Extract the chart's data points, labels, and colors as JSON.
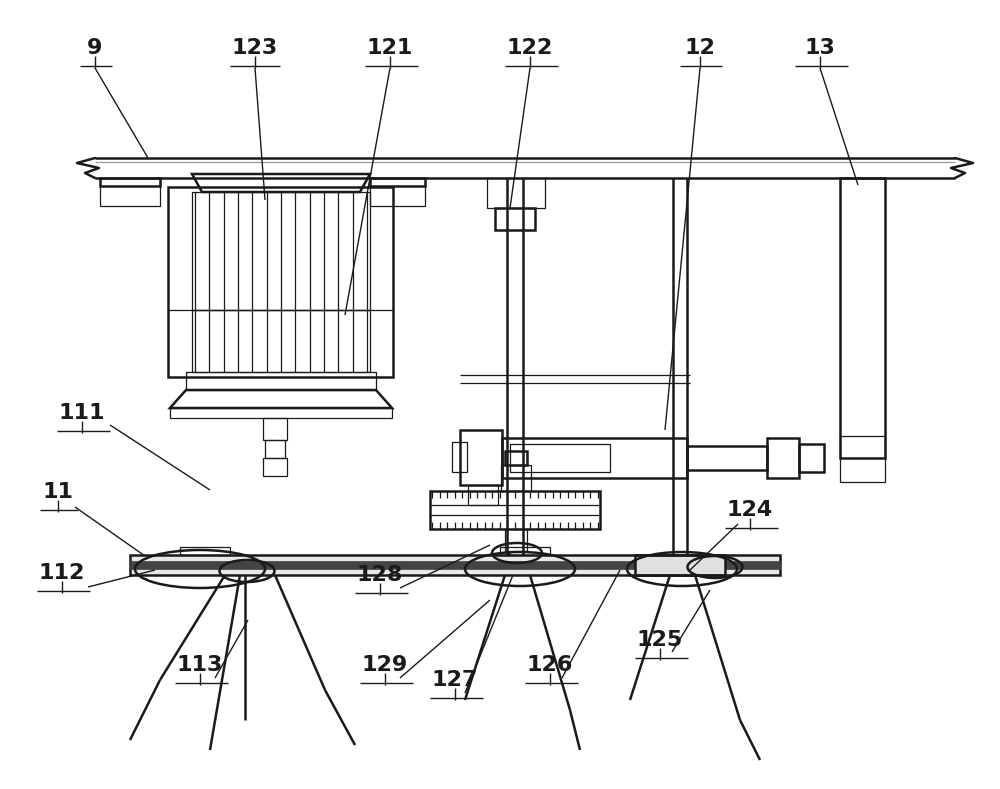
{
  "fig_width": 10.0,
  "fig_height": 7.89,
  "bg_color": "#ffffff",
  "line_color": "#1a1a1a",
  "lw_main": 1.8,
  "lw_thin": 0.9,
  "lw_label": 1.0
}
